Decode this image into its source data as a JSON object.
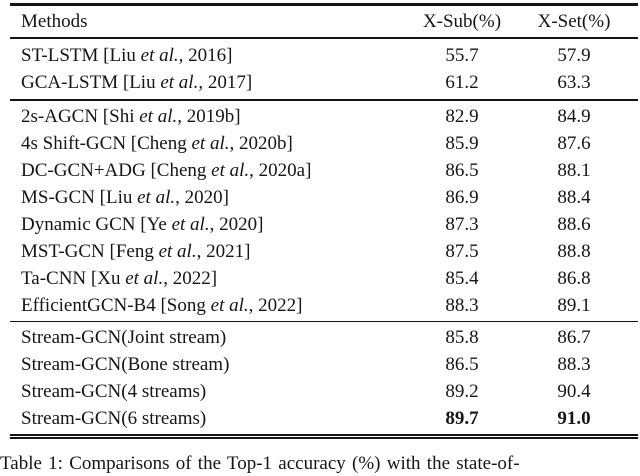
{
  "table": {
    "columns": {
      "methods": "Methods",
      "xsub": "X-Sub(%)",
      "xset": "X-Set(%)"
    },
    "rows": [
      {
        "pre": "ST-LSTM [Liu ",
        "etal": "et al.",
        "post": ", 2016]",
        "xsub": "55.7",
        "xset": "57.9"
      },
      {
        "pre": "GCA-LSTM [Liu ",
        "etal": "et al.",
        "post": ", 2017]",
        "xsub": "61.2",
        "xset": "63.3"
      },
      {
        "pre": "2s-AGCN [Shi ",
        "etal": "et al.",
        "post": ", 2019b]",
        "xsub": "82.9",
        "xset": "84.9"
      },
      {
        "pre": "4s Shift-GCN [Cheng ",
        "etal": "et al.",
        "post": ", 2020b]",
        "xsub": "85.9",
        "xset": "87.6"
      },
      {
        "pre": "DC-GCN+ADG [Cheng ",
        "etal": "et al.",
        "post": ", 2020a]",
        "xsub": "86.5",
        "xset": "88.1"
      },
      {
        "pre": "MS-GCN [Liu ",
        "etal": "et al.",
        "post": ", 2020]",
        "xsub": "86.9",
        "xset": "88.4"
      },
      {
        "pre": "Dynamic GCN [Ye ",
        "etal": "et al.",
        "post": ", 2020]",
        "xsub": "87.3",
        "xset": "88.6"
      },
      {
        "pre": "MST-GCN [Feng ",
        "etal": "et al.",
        "post": ", 2021]",
        "xsub": "87.5",
        "xset": "88.8"
      },
      {
        "pre": "Ta-CNN [Xu ",
        "etal": "et al.",
        "post": ", 2022]",
        "xsub": "85.4",
        "xset": "86.8"
      },
      {
        "pre": "EfficientGCN-B4 [Song ",
        "etal": "et al.",
        "post": ", 2022]",
        "xsub": "88.3",
        "xset": "89.1"
      },
      {
        "pre": "Stream-GCN(Joint stream)",
        "etal": "",
        "post": "",
        "xsub": "85.8",
        "xset": "86.7"
      },
      {
        "pre": "Stream-GCN(Bone stream)",
        "etal": "",
        "post": "",
        "xsub": "86.5",
        "xset": "88.3"
      },
      {
        "pre": "Stream-GCN(4 streams)",
        "etal": "",
        "post": "",
        "xsub": "89.2",
        "xset": "90.4"
      },
      {
        "pre": "Stream-GCN(6 streams)",
        "etal": "",
        "post": "",
        "xsub": "89.7",
        "xset": "91.0"
      }
    ]
  },
  "caption": "Table 1: Comparisons of the Top-1 accuracy (%) with the state-of-"
}
